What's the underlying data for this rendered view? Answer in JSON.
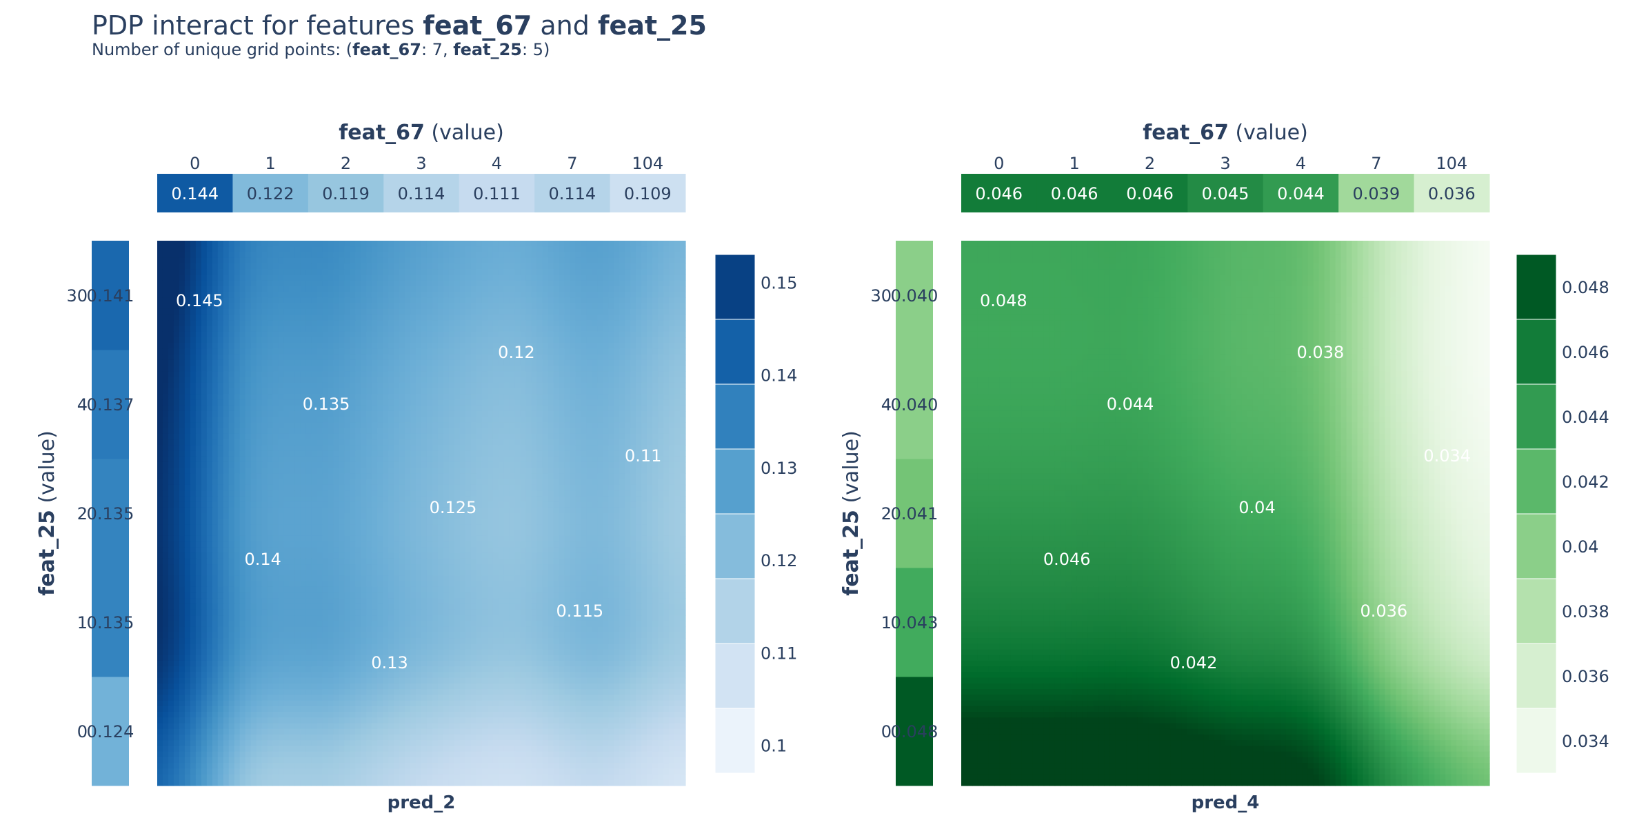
{
  "title": {
    "prefix": "PDP interact for features ",
    "feature_1": "feat_67",
    "middle": " and ",
    "feature_2": "feat_25"
  },
  "subtitle": {
    "prefix": "Number of unique grid points: (",
    "feature_1": "feat_67",
    "count_1": ": 7, ",
    "feature_2": "feat_25",
    "count_2": ": 5)"
  },
  "chart_data": [
    {
      "type": "heatmap",
      "name": "pred_2",
      "colorscale": "Blues",
      "xlabel": "pred_2",
      "top_axis_label": {
        "feature": "feat_67",
        "suffix": " (value)"
      },
      "left_axis_label": {
        "feature": "feat_25",
        "suffix": " (value)"
      },
      "x_grid": [
        "0",
        "1",
        "2",
        "3",
        "4",
        "7",
        "104"
      ],
      "y_grid": [
        "0",
        "1",
        "2",
        "4",
        "30"
      ],
      "x_marginal": [
        0.144,
        0.122,
        0.119,
        0.114,
        0.111,
        0.114,
        0.109
      ],
      "y_marginal": [
        0.124,
        0.135,
        0.135,
        0.137,
        0.141
      ],
      "y_marginal_labels": [
        "0.124",
        "0.135",
        "0.135",
        "0.137",
        "0.141"
      ],
      "zmin": 0.097,
      "zmax": 0.153,
      "colorbar_ticks": [
        0.1,
        0.11,
        0.12,
        0.13,
        0.14,
        0.15
      ],
      "colorbar_tick_labels": [
        "0.1",
        "0.11",
        "0.12",
        "0.13",
        "0.14",
        "0.15"
      ],
      "contour_labels": [
        "0.145",
        "0.14",
        "0.135",
        "0.13",
        "0.125",
        "0.12",
        "0.115",
        "0.11"
      ]
    },
    {
      "type": "heatmap",
      "name": "pred_4",
      "colorscale": "Greens",
      "xlabel": "pred_4",
      "top_axis_label": {
        "feature": "feat_67",
        "suffix": " (value)"
      },
      "left_axis_label": {
        "feature": "feat_25",
        "suffix": " (value)"
      },
      "x_grid": [
        "0",
        "1",
        "2",
        "3",
        "4",
        "7",
        "104"
      ],
      "y_grid": [
        "0",
        "1",
        "2",
        "4",
        "30"
      ],
      "x_marginal": [
        0.046,
        0.046,
        0.046,
        0.045,
        0.044,
        0.039,
        0.036
      ],
      "y_marginal": [
        0.048,
        0.043,
        0.041,
        0.04,
        0.04
      ],
      "y_marginal_labels": [
        "0.048",
        "0.043",
        "0.041",
        "0.040",
        "0.040"
      ],
      "zmin": 0.033,
      "zmax": 0.049,
      "colorbar_ticks": [
        0.034,
        0.036,
        0.038,
        0.04,
        0.042,
        0.044,
        0.046,
        0.048
      ],
      "colorbar_tick_labels": [
        "0.034",
        "0.036",
        "0.038",
        "0.04",
        "0.042",
        "0.044",
        "0.046",
        "0.048"
      ],
      "contour_labels": [
        "0.048",
        "0.046",
        "0.044",
        "0.042",
        "0.04",
        "0.038",
        "0.036",
        "0.034"
      ]
    }
  ]
}
